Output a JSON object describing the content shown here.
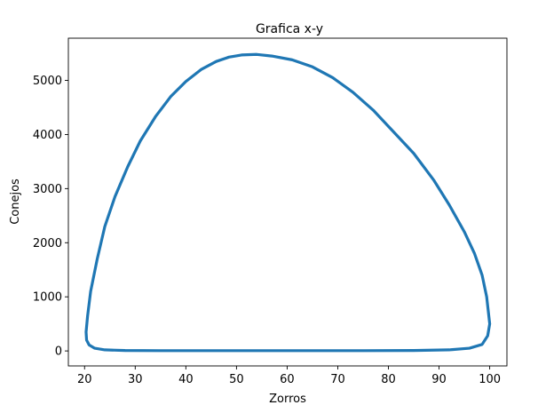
{
  "chart_data": {
    "type": "line",
    "title": "Grafica x-y",
    "xlabel": "Zorros",
    "ylabel": "Conejos",
    "xlim": [
      16.8,
      103.4
    ],
    "ylim": [
      -277,
      5780
    ],
    "xticks": [
      20,
      30,
      40,
      50,
      60,
      70,
      80,
      90,
      100
    ],
    "yticks": [
      0,
      1000,
      2000,
      3000,
      4000,
      5000
    ],
    "grid": false,
    "legend": "none",
    "series": [
      {
        "color": "#1f77b4",
        "x": [
          100,
          99.7,
          99.4,
          98.5,
          97.0,
          95.0,
          92.0,
          89.0,
          85.0,
          81.0,
          77.0,
          73.0,
          69.0,
          65.0,
          61.0,
          57.0,
          54.0,
          51.0,
          48.5,
          46.0,
          43.0,
          40.0,
          37.0,
          34.0,
          31.0,
          28.5,
          26.0,
          24.0,
          22.5,
          21.2,
          20.6,
          20.3,
          20.4,
          20.9,
          22.0,
          24.0,
          28.0,
          35.0,
          45.0,
          55.0,
          65.0,
          75.0,
          85.0,
          92.0,
          96.0,
          98.5,
          99.6,
          100
        ],
        "y": [
          500,
          750,
          1000,
          1400,
          1800,
          2200,
          2700,
          3150,
          3650,
          4050,
          4450,
          4780,
          5050,
          5250,
          5380,
          5450,
          5480,
          5470,
          5430,
          5350,
          5200,
          4980,
          4700,
          4330,
          3880,
          3400,
          2850,
          2300,
          1700,
          1100,
          650,
          350,
          200,
          110,
          50,
          20,
          8,
          5,
          5,
          5,
          5,
          5,
          8,
          20,
          50,
          120,
          280,
          500
        ]
      }
    ]
  }
}
